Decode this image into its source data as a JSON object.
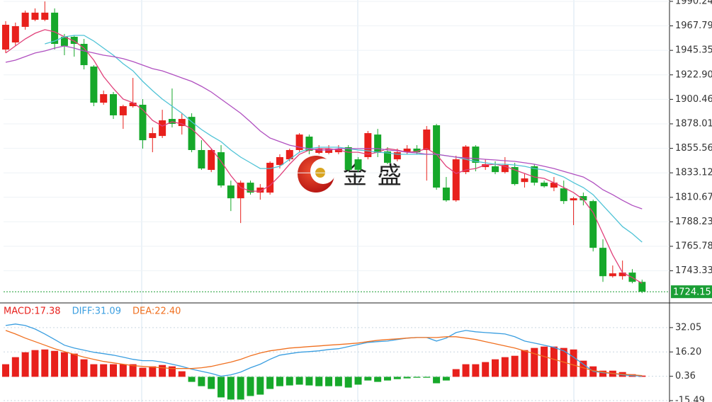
{
  "watermark": "金 盛",
  "chart_data": [
    {
      "type": "candlestick",
      "ylim": [
        1713.9,
        1991.5
      ],
      "yticks": [
        1990.24,
        1967.79,
        1945.35,
        {
          "value": 1922.9,
          "label": "1922.90"
        },
        1900.46,
        1878.01,
        1855.56,
        1833.12,
        1810.67,
        1788.23,
        1765.78,
        1743.33
      ],
      "grid": true,
      "up_color": "#e8201c",
      "down_color": "#16a82a",
      "open": [
        1946.1,
        1952.6,
        1966.9,
        1973.4,
        1973.4,
        1979.9,
        1957.8,
        1957.8,
        1951.3,
        1930.5,
        1897.4,
        1905.2,
        1885.8,
        1894.2,
        1895.5,
        1865.0,
        1866.9,
        1882.5,
        1876.0,
        1884.4,
        1854.0,
        1835.8,
        1852.0,
        1821.5,
        1809.8,
        1824.1,
        1815.0,
        1815.0,
        1840.3,
        1845.5,
        1854.0,
        1866.3,
        1851.4,
        1851.4,
        1852.0,
        1856.6,
        1845.5,
        1847.5,
        1868.2,
        1852.7,
        1845.5,
        1852.0,
        1855.3,
        1854.0,
        1876.7,
        1819.6,
        1807.9,
        1833.8,
        1857.2,
        1838.4,
        1839.1,
        1833.8,
        1838.4,
        1824.7,
        1839.1,
        1824.1,
        1819.6,
        1818.9,
        1807.9,
        1811.8,
        1807.2,
        1764.4,
        1738.4,
        1738.4,
        1741.7,
        1733.2
      ],
      "high": [
        1972.1,
        1970.8,
        1981.8,
        1983.8,
        1990.2,
        1983.8,
        1960.4,
        1959.1,
        1955.8,
        1931.8,
        1908.5,
        1907.2,
        1895.5,
        1920.1,
        1900.7,
        1874.7,
        1890.9,
        1910.4,
        1887.7,
        1887.7,
        1863.0,
        1855.3,
        1858.5,
        1826.0,
        1826.0,
        1826.0,
        1822.8,
        1843.6,
        1850.1,
        1855.3,
        1869.5,
        1868.2,
        1858.5,
        1858.5,
        1858.5,
        1858.5,
        1847.5,
        1871.5,
        1873.4,
        1856.6,
        1855.3,
        1858.5,
        1858.5,
        1876.0,
        1878.0,
        1829.3,
        1848.8,
        1858.5,
        1858.5,
        1845.5,
        1843.6,
        1847.5,
        1842.3,
        1832.5,
        1841.0,
        1826.0,
        1829.3,
        1826.0,
        1811.1,
        1815.0,
        1808.5,
        1772.2,
        1748.2,
        1752.7,
        1744.9,
        1735.2
      ],
      "low": [
        1942.9,
        1949.4,
        1964.3,
        1972.1,
        1972.1,
        1946.1,
        1940.9,
        1939.6,
        1927.9,
        1894.2,
        1895.5,
        1882.5,
        1873.4,
        1892.9,
        1855.3,
        1852.0,
        1865.0,
        1874.7,
        1868.2,
        1852.0,
        1835.8,
        1833.8,
        1819.6,
        1798.1,
        1787.1,
        1813.1,
        1808.5,
        1813.1,
        1837.1,
        1843.6,
        1852.0,
        1850.1,
        1850.1,
        1850.1,
        1850.1,
        1834.5,
        1833.8,
        1845.5,
        1847.5,
        1841.0,
        1843.6,
        1850.1,
        1850.1,
        1826.0,
        1817.6,
        1806.6,
        1806.6,
        1831.9,
        1834.5,
        1835.8,
        1831.9,
        1832.5,
        1821.5,
        1819.6,
        1821.5,
        1819.6,
        1816.3,
        1804.6,
        1785.2,
        1803.3,
        1761.1,
        1733.2,
        1737.1,
        1735.2,
        1731.9,
        1722.9
      ],
      "close": [
        1968.8,
        1967.5,
        1979.9,
        1979.9,
        1979.9,
        1951.3,
        1949.4,
        1951.3,
        1931.8,
        1897.4,
        1905.2,
        1885.8,
        1894.2,
        1897.4,
        1863.0,
        1869.5,
        1881.2,
        1878.0,
        1882.5,
        1854.0,
        1837.1,
        1854.0,
        1821.5,
        1809.8,
        1824.1,
        1815.0,
        1819.6,
        1842.3,
        1847.5,
        1854.0,
        1868.2,
        1853.3,
        1855.3,
        1855.3,
        1855.3,
        1835.8,
        1835.8,
        1869.5,
        1851.4,
        1842.3,
        1852.0,
        1855.3,
        1852.0,
        1872.8,
        1819.6,
        1807.9,
        1845.5,
        1857.2,
        1842.3,
        1841.0,
        1833.8,
        1840.3,
        1822.8,
        1828.0,
        1824.1,
        1820.8,
        1824.1,
        1807.2,
        1809.8,
        1807.9,
        1764.4,
        1738.4,
        1741.0,
        1741.7,
        1733.2,
        1724.15
      ],
      "lines": [
        {
          "color": "#e0407a",
          "values": [
            1942.9,
            1949.4,
            1955.8,
            1961.0,
            1964.3,
            1962.3,
            1957.8,
            1953.9,
            1947.4,
            1936.4,
            1921.4,
            1910.4,
            1900.7,
            1897.4,
            1890.9,
            1881.2,
            1876.0,
            1879.9,
            1878.0,
            1873.4,
            1865.0,
            1855.3,
            1843.6,
            1830.6,
            1819.6,
            1816.3,
            1816.3,
            1821.5,
            1830.6,
            1841.0,
            1850.1,
            1854.0,
            1855.3,
            1855.3,
            1854.0,
            1852.0,
            1852.0,
            1850.1,
            1852.0,
            1855.3,
            1854.0,
            1852.0,
            1852.7,
            1855.3,
            1850.1,
            1839.1,
            1832.5,
            1835.8,
            1837.1,
            1840.3,
            1841.0,
            1839.1,
            1835.8,
            1832.5,
            1829.3,
            1828.0,
            1824.1,
            1819.6,
            1815.0,
            1808.5,
            1796.8,
            1777.4,
            1757.9,
            1741.7,
            1737.1,
            1731.9
          ]
        },
        {
          "color": "#4fc3d6",
          "values": [
            null,
            null,
            null,
            null,
            1951.3,
            1953.9,
            1957.8,
            1959.1,
            1959.1,
            1953.9,
            1947.4,
            1940.9,
            1933.1,
            1926.6,
            1916.9,
            1908.5,
            1900.7,
            1894.2,
            1887.7,
            1879.9,
            1872.8,
            1866.9,
            1861.7,
            1854.0,
            1847.5,
            1842.3,
            1837.1,
            1837.1,
            1839.1,
            1845.5,
            1852.0,
            1855.3,
            1856.6,
            1856.6,
            1856.6,
            1855.3,
            1854.0,
            1853.3,
            1852.0,
            1851.4,
            1850.1,
            1850.1,
            1850.1,
            1850.1,
            1850.1,
            1848.8,
            1847.5,
            1845.5,
            1843.6,
            1842.3,
            1841.0,
            1841.0,
            1840.3,
            1839.1,
            1837.1,
            1835.8,
            1832.5,
            1829.3,
            1824.1,
            1819.6,
            1813.1,
            1803.3,
            1793.6,
            1783.8,
            1777.4,
            1769.6
          ]
        },
        {
          "color": "#b050c0",
          "values": [
            1934.4,
            1936.4,
            1939.6,
            1942.9,
            1944.8,
            1947.4,
            1949.4,
            1947.4,
            1944.8,
            1942.9,
            1940.9,
            1939.6,
            1937.7,
            1935.1,
            1931.8,
            1928.6,
            1926.6,
            1923.4,
            1920.1,
            1916.9,
            1912.4,
            1907.2,
            1900.7,
            1894.2,
            1887.7,
            1879.9,
            1871.5,
            1865.0,
            1861.7,
            1858.5,
            1856.6,
            1855.3,
            1854.0,
            1854.0,
            1855.3,
            1855.3,
            1855.3,
            1855.3,
            1855.3,
            1854.0,
            1853.3,
            1852.0,
            1851.4,
            1850.1,
            1850.1,
            1848.8,
            1847.5,
            1846.8,
            1846.2,
            1845.5,
            1844.9,
            1844.2,
            1843.6,
            1842.3,
            1841.0,
            1839.1,
            1837.1,
            1834.5,
            1831.9,
            1829.3,
            1824.1,
            1817.6,
            1813.1,
            1807.9,
            1803.3,
            1800.1
          ]
        }
      ],
      "last_price": 1724.15,
      "last_price_color": "#1a9e35"
    },
    {
      "type": "macd",
      "ylim": [
        -16.4,
        47.2
      ],
      "yticks": [
        32.05,
        {
          "value": 16.2,
          "label": "16.20"
        },
        0.36,
        -15.49
      ],
      "legend": [
        "MACD:17.38",
        "DIFF:31.09",
        "DEA:22.40"
      ],
      "series": [
        {
          "color": "#e8201c",
          "negative_color": "#16a82a",
          "values": [
            8.2,
            12.8,
            16.0,
            17.4,
            17.8,
            16.9,
            16.0,
            15.1,
            11.4,
            8.2,
            8.2,
            8.2,
            8.2,
            8.2,
            5.9,
            6.8,
            7.7,
            6.8,
            3.6,
            -3.3,
            -6.1,
            -7.9,
            -13.4,
            -14.8,
            -14.8,
            -12.5,
            -11.6,
            -7.9,
            -6.1,
            -5.6,
            -5.1,
            -5.6,
            -6.1,
            -6.1,
            -6.1,
            -7.0,
            -5.1,
            -2.4,
            -3.3,
            -2.4,
            -1.5,
            -1.0,
            -0.6,
            -0.6,
            -4.2,
            -2.4,
            5.0,
            8.2,
            8.2,
            9.6,
            11.4,
            12.8,
            13.7,
            17.4,
            18.8,
            19.7,
            19.7,
            18.8,
            17.8,
            10.5,
            6.8,
            4.0,
            4.0,
            3.1,
            1.7,
            0.8
          ]
        },
        {
          "color": "#3a9ee0",
          "values": [
            33.4,
            34.4,
            33.4,
            31.1,
            27.9,
            24.3,
            20.6,
            18.7,
            17.4,
            16.0,
            15.1,
            14.1,
            12.8,
            11.4,
            10.5,
            10.5,
            9.6,
            8.2,
            6.8,
            5.0,
            3.6,
            2.2,
            0.4,
            1.3,
            3.1,
            5.9,
            8.2,
            11.4,
            14.1,
            15.1,
            16.0,
            16.4,
            16.9,
            17.8,
            18.3,
            19.7,
            21.0,
            22.4,
            22.9,
            23.3,
            24.3,
            25.2,
            25.6,
            25.6,
            23.3,
            25.2,
            28.8,
            30.2,
            29.3,
            28.8,
            28.4,
            27.9,
            26.1,
            23.3,
            22.0,
            20.6,
            19.2,
            16.9,
            12.8,
            8.2,
            3.6,
            2.7,
            2.2,
            1.3,
            0.8,
            0.4
          ]
        },
        {
          "color": "#f07020",
          "values": [
            30.2,
            27.9,
            25.2,
            22.9,
            20.6,
            18.3,
            16.4,
            14.6,
            12.8,
            11.4,
            10.0,
            9.1,
            8.2,
            7.3,
            6.8,
            6.3,
            5.9,
            5.4,
            5.4,
            5.4,
            5.9,
            6.8,
            8.2,
            9.6,
            11.4,
            13.7,
            15.5,
            16.9,
            17.8,
            18.7,
            19.2,
            19.7,
            20.1,
            20.6,
            21.0,
            21.5,
            22.0,
            22.9,
            23.8,
            24.3,
            24.7,
            25.2,
            25.6,
            25.6,
            25.6,
            26.1,
            26.1,
            25.2,
            24.3,
            22.9,
            21.5,
            20.1,
            18.7,
            16.9,
            15.1,
            13.2,
            11.4,
            9.6,
            7.7,
            5.9,
            4.0,
            3.1,
            2.2,
            1.7,
            1.3,
            0.8
          ]
        }
      ]
    }
  ]
}
